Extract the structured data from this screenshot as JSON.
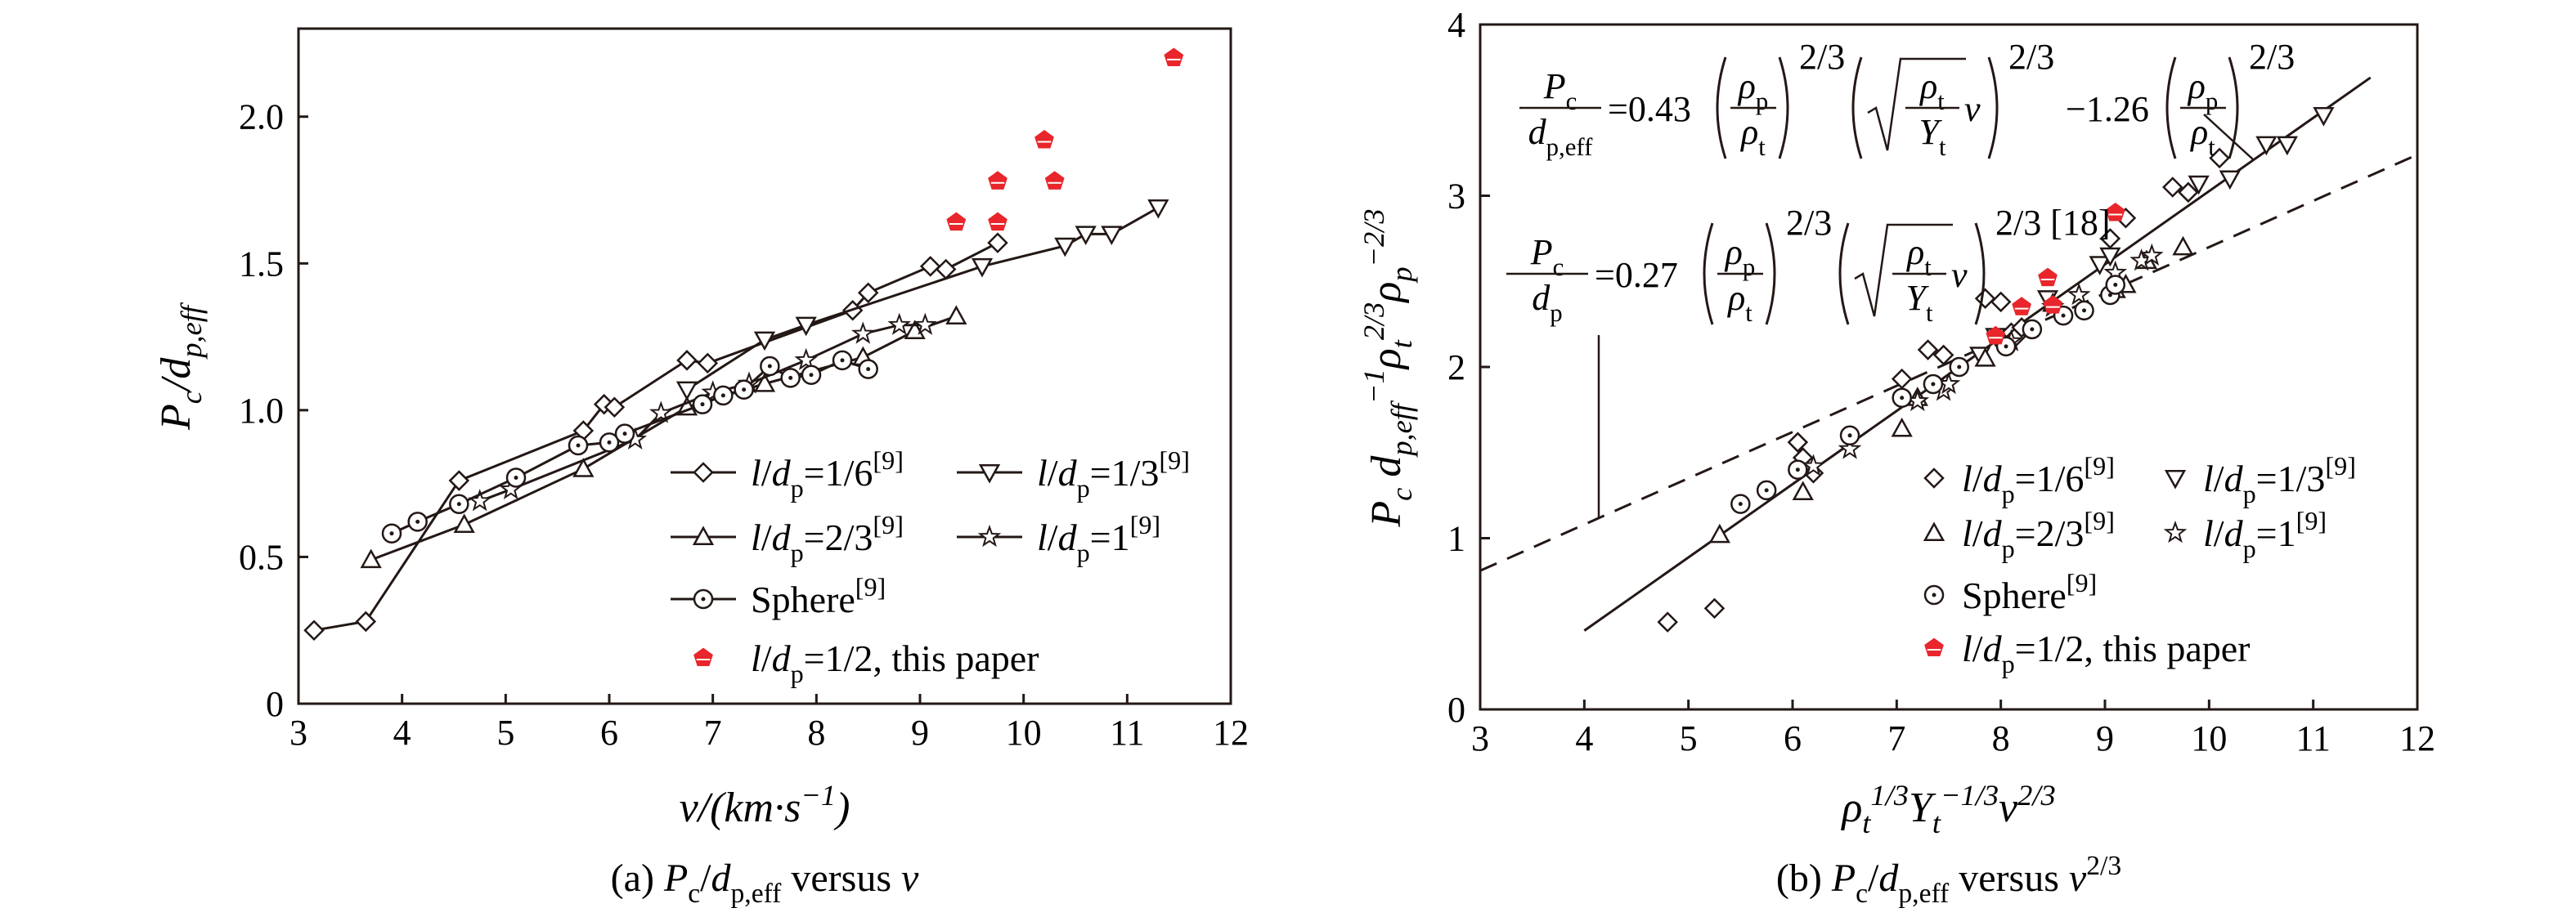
{
  "chart_data": [
    {
      "id": "a",
      "type": "line",
      "caption": {
        "prefix": "(a) ",
        "p": "P",
        "c": "c",
        "slash": "/",
        "d": "d",
        "peff": "p,eff",
        "mid": " versus ",
        "v": "v"
      },
      "xlabel": {
        "v": "v",
        "rest": "/(km·s",
        "sup": "−1",
        "close": ")"
      },
      "ylabel": {
        "p": "P",
        "c": "c",
        "slash": "/",
        "d": "d",
        "sub": "p,eff"
      },
      "xlim": [
        3,
        12
      ],
      "ylim": [
        0,
        2.3
      ],
      "xticks": [
        "3",
        "4",
        "5",
        "6",
        "7",
        "8",
        "9",
        "10",
        "11",
        "12"
      ],
      "yticks": [
        {
          "v": 0,
          "label": "0"
        },
        {
          "v": 0.5,
          "label": "0.5"
        },
        {
          "v": 1.0,
          "label": "1.0"
        },
        {
          "v": 1.5,
          "label": "1.5"
        },
        {
          "v": 2.0,
          "label": "2.0"
        }
      ],
      "series": [
        {
          "key": "s16",
          "marker": "diamond",
          "color": "#231815",
          "line": true,
          "legend": {
            "pre": "l",
            "mid": "/",
            "d": "d",
            "sub": "p",
            "val": "=1/6",
            "sup": "[9]"
          },
          "x": [
            3.15,
            3.65,
            4.55,
            5.75,
            5.95,
            6.05,
            6.75,
            6.95,
            8.35,
            8.5,
            9.1,
            9.25,
            9.75
          ],
          "y": [
            0.25,
            0.28,
            0.76,
            0.93,
            1.02,
            1.01,
            1.17,
            1.16,
            1.34,
            1.4,
            1.49,
            1.48,
            1.57
          ]
        },
        {
          "key": "s13",
          "marker": "tri-down",
          "color": "#231815",
          "line": true,
          "legend": {
            "pre": "l",
            "mid": "/",
            "d": "d",
            "sub": "p",
            "val": "=1/3",
            "sup": "[9]"
          },
          "x": [
            6.75,
            7.5,
            7.9,
            9.6,
            10.4,
            10.6,
            10.85,
            11.3
          ],
          "y": [
            1.07,
            1.24,
            1.29,
            1.49,
            1.56,
            1.6,
            1.6,
            1.69
          ]
        },
        {
          "key": "s23",
          "marker": "tri-up",
          "color": "#231815",
          "line": true,
          "legend": {
            "pre": "l",
            "mid": "/",
            "d": "d",
            "sub": "p",
            "val": "=2/3",
            "sup": "[9]"
          },
          "x": [
            3.7,
            4.6,
            5.75,
            6.75,
            7.5,
            8.45,
            8.95,
            9.35
          ],
          "y": [
            0.49,
            0.61,
            0.8,
            1.01,
            1.09,
            1.18,
            1.27,
            1.32
          ]
        },
        {
          "key": "s1",
          "marker": "star",
          "color": "#231815",
          "line": true,
          "legend": {
            "pre": "l",
            "mid": "/",
            "d": "d",
            "sub": "p",
            "val": "=1",
            "sup": "[9]"
          },
          "x": [
            4.75,
            5.05,
            6.25,
            6.5,
            7.0,
            7.35,
            7.9,
            8.45,
            8.8,
            9.05
          ],
          "y": [
            0.69,
            0.73,
            0.9,
            0.99,
            1.06,
            1.09,
            1.17,
            1.26,
            1.29,
            1.29
          ]
        },
        {
          "key": "sph",
          "marker": "circle-dot",
          "color": "#231815",
          "line": true,
          "legend": {
            "pre": "",
            "mid": "",
            "d": "",
            "sub": "",
            "val": "Sphere",
            "sup": "[9]"
          },
          "x": [
            3.9,
            4.15,
            4.55,
            5.1,
            5.7,
            6.0,
            6.15,
            6.9,
            7.1,
            7.3,
            7.55,
            7.75,
            7.95,
            8.25,
            8.5
          ],
          "y": [
            0.58,
            0.62,
            0.68,
            0.77,
            0.88,
            0.89,
            0.92,
            1.02,
            1.05,
            1.07,
            1.15,
            1.11,
            1.12,
            1.17,
            1.14
          ]
        },
        {
          "key": "paper",
          "marker": "pentagon",
          "color": "#e8262b",
          "line": false,
          "legend": {
            "pre": "l",
            "mid": "/",
            "d": "d",
            "sub": "p",
            "val": "=1/2, this paper",
            "sup": ""
          },
          "x": [
            9.35,
            9.75,
            9.75,
            10.2,
            10.3,
            11.45
          ],
          "y": [
            1.64,
            1.64,
            1.78,
            1.92,
            1.78,
            2.2
          ]
        }
      ]
    },
    {
      "id": "b",
      "type": "scatter",
      "caption": {
        "prefix": "(b) ",
        "p": "P",
        "c": "c",
        "slash": "/",
        "d": "d",
        "peff": "p,eff",
        "mid": " versus ",
        "v": "v",
        "vsup": "2/3"
      },
      "xlabel": {
        "rho": "ρ",
        "rsub": "t",
        "rsup": "1/3",
        "y": "Y",
        "ysub": "t",
        "ysup": "−1/3",
        "v": "v",
        "vsup": "2/3"
      },
      "ylabel": {
        "p": "P",
        "c": "c",
        "d": "d",
        "dsub": "p,eff",
        "dsup": "−1",
        "r1": "ρ",
        "r1sub": "t",
        "r1sup": "2/3",
        "r2": "ρ",
        "r2sub": "p",
        "r2sup": "−2/3"
      },
      "xlim": [
        3,
        12
      ],
      "ylim": [
        0,
        4
      ],
      "xticks": [
        "3",
        "4",
        "5",
        "6",
        "7",
        "8",
        "9",
        "10",
        "11",
        "12"
      ],
      "yticks": [
        {
          "v": 0,
          "label": "0"
        },
        {
          "v": 1,
          "label": "1"
        },
        {
          "v": 2,
          "label": "2"
        },
        {
          "v": 3,
          "label": "3"
        },
        {
          "v": 4,
          "label": "4"
        }
      ],
      "fit_lines": [
        {
          "key": "solid-fit",
          "style": "solid",
          "x": [
            4.0,
            11.55
          ],
          "y": [
            0.46,
            3.69
          ]
        },
        {
          "key": "dashed-fit",
          "style": "dashed",
          "x": [
            3.0,
            12.0
          ],
          "y": [
            0.81,
            3.24
          ]
        }
      ],
      "equations": [
        {
          "key": "eq-solid",
          "lhs_num": "P",
          "lhs_num_sub": "c",
          "lhs_den": "d",
          "lhs_den_sub": "p,eff",
          "c1": "=0.43",
          "rp": "ρ",
          "rpsub": "p",
          "rt": "ρ",
          "rtsub": "t",
          "e1": "2/3",
          "sqrt_num": "ρ",
          "sqrt_num_sub": "t",
          "sqrt_den": "Y",
          "sqrt_den_sub": "t",
          "vv": "v",
          "e2": "2/3",
          "c2": "−1.26",
          "e3": "2/3",
          "ref": ""
        },
        {
          "key": "eq-dashed",
          "lhs_num": "P",
          "lhs_num_sub": "c",
          "lhs_den": "d",
          "lhs_den_sub": "p",
          "c1": "=0.27",
          "rp": "ρ",
          "rpsub": "p",
          "rt": "ρ",
          "rtsub": "t",
          "e1": "2/3",
          "sqrt_num": "ρ",
          "sqrt_num_sub": "t",
          "sqrt_den": "Y",
          "sqrt_den_sub": "t",
          "vv": "v",
          "e2": "2/3",
          "c2": "",
          "e3": "",
          "ref": "[18]"
        }
      ],
      "series": [
        {
          "key": "b16",
          "marker": "diamond",
          "color": "#231815",
          "legend": {
            "pre": "l",
            "mid": "/",
            "d": "d",
            "sub": "p",
            "val": "=1/6",
            "sup": "[9]"
          },
          "x": [
            4.8,
            5.25,
            6.05,
            6.1,
            6.2,
            7.05,
            7.3,
            7.45,
            7.85,
            8.0,
            8.1,
            8.15,
            8.2,
            9.05,
            9.2,
            9.65,
            9.8,
            10.1
          ],
          "y": [
            0.51,
            0.59,
            1.56,
            1.47,
            1.38,
            1.93,
            2.1,
            2.07,
            2.4,
            2.38,
            2.2,
            2.18,
            2.23,
            2.75,
            2.87,
            3.05,
            3.02,
            3.22
          ]
        },
        {
          "key": "b13",
          "marker": "tri-down",
          "color": "#231815",
          "legend": {
            "pre": "l",
            "mid": "/",
            "d": "d",
            "sub": "p",
            "val": "=1/3",
            "sup": "[9]"
          },
          "x": [
            7.8,
            7.95,
            8.45,
            8.95,
            9.05,
            9.9,
            10.2,
            10.55,
            10.75,
            11.1
          ],
          "y": [
            2.07,
            2.18,
            2.4,
            2.6,
            2.65,
            3.07,
            3.1,
            3.3,
            3.3,
            3.47
          ]
        },
        {
          "key": "b23",
          "marker": "tri-up",
          "color": "#231815",
          "legend": {
            "pre": "l",
            "mid": "/",
            "d": "d",
            "sub": "p",
            "val": "=2/3",
            "sup": "[9]"
          },
          "x": [
            5.3,
            6.1,
            7.05,
            7.2,
            7.85,
            8.5,
            9.1,
            9.2,
            9.4,
            9.75
          ],
          "y": [
            1.02,
            1.27,
            1.64,
            1.82,
            2.05,
            2.37,
            2.45,
            2.48,
            2.62,
            2.7
          ]
        },
        {
          "key": "b1",
          "marker": "star",
          "color": "#231815",
          "legend": {
            "pre": "l",
            "mid": "/",
            "d": "d",
            "sub": "p",
            "val": "=1",
            "sup": "[9]"
          },
          "x": [
            6.2,
            6.55,
            7.2,
            7.45,
            7.5,
            8.1,
            8.5,
            8.75,
            9.1,
            9.35,
            9.45
          ],
          "y": [
            1.42,
            1.52,
            1.8,
            1.86,
            1.9,
            2.15,
            2.35,
            2.42,
            2.55,
            2.62,
            2.65
          ]
        },
        {
          "key": "bsph",
          "marker": "circle-dot",
          "color": "#231815",
          "legend": {
            "pre": "",
            "mid": "",
            "d": "",
            "sub": "",
            "val": "Sphere",
            "sup": "[9]"
          },
          "x": [
            5.5,
            5.75,
            6.05,
            6.55,
            7.05,
            7.35,
            7.6,
            8.05,
            8.3,
            8.6,
            8.8,
            9.05,
            9.1
          ],
          "y": [
            1.2,
            1.28,
            1.4,
            1.6,
            1.82,
            1.9,
            2.0,
            2.12,
            2.22,
            2.3,
            2.33,
            2.42,
            2.48
          ]
        },
        {
          "key": "bpaper",
          "marker": "pentagon",
          "color": "#e8262b",
          "legend": {
            "pre": "l",
            "mid": "/",
            "d": "d",
            "sub": "p",
            "val": "=1/2, this paper",
            "sup": ""
          },
          "x": [
            7.95,
            8.2,
            8.45,
            8.5,
            9.1
          ],
          "y": [
            2.18,
            2.35,
            2.52,
            2.36,
            2.9
          ]
        }
      ]
    }
  ]
}
